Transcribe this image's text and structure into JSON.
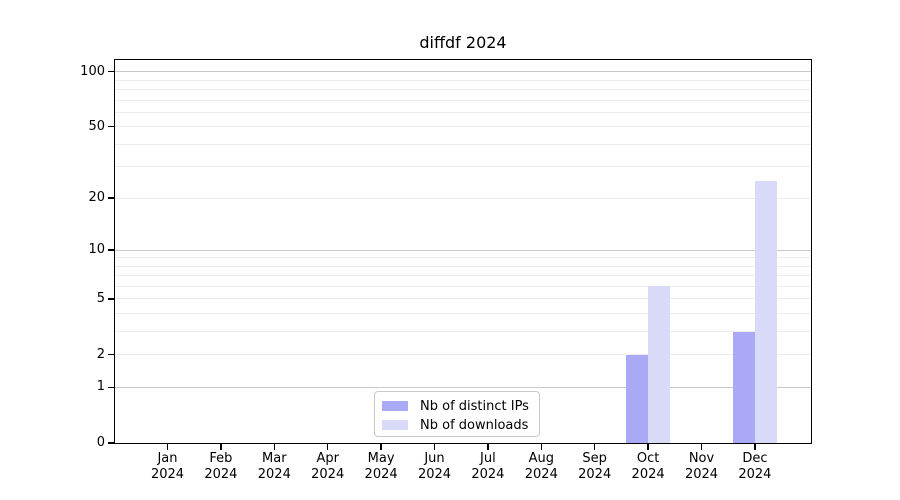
{
  "title": "diffdf 2024",
  "chart_data": {
    "type": "bar",
    "title": "diffdf 2024",
    "categories": [
      "Jan",
      "Feb",
      "Mar",
      "Apr",
      "May",
      "Jun",
      "Jul",
      "Aug",
      "Sep",
      "Oct",
      "Nov",
      "Dec"
    ],
    "x_tick_year": "2024",
    "series": [
      {
        "name": "Nb of distinct IPs",
        "color": "#a9a9f6",
        "values": [
          0,
          0,
          0,
          0,
          0,
          0,
          0,
          0,
          0,
          2,
          0,
          3
        ]
      },
      {
        "name": "Nb of downloads",
        "color": "#d9d9f8",
        "values": [
          0,
          0,
          0,
          0,
          0,
          0,
          0,
          0,
          0,
          6,
          0,
          25
        ]
      }
    ],
    "y_axis": {
      "scale": "log1p",
      "tick_values": [
        0,
        1,
        2,
        5,
        10,
        20,
        50,
        100
      ],
      "minor_gridlines": [
        2,
        3,
        4,
        5,
        6,
        7,
        8,
        9,
        20,
        30,
        40,
        50,
        60,
        70,
        80,
        90
      ],
      "major_gridlines": [
        1,
        10,
        100
      ],
      "ylim": [
        0,
        116
      ]
    },
    "legend": {
      "position": "lower center",
      "entries": [
        "Nb of distinct IPs",
        "Nb of downloads"
      ]
    },
    "grid": true
  },
  "colors": {
    "background": "#ffffff",
    "spine": "#000000",
    "text": "#000000",
    "minor_grid": "#ededed",
    "major_grid": "#c9c9c9",
    "legend_border": "#c9c9c9",
    "series_distinct_ips": "#a9a9f6",
    "series_downloads": "#d9d9f8"
  }
}
